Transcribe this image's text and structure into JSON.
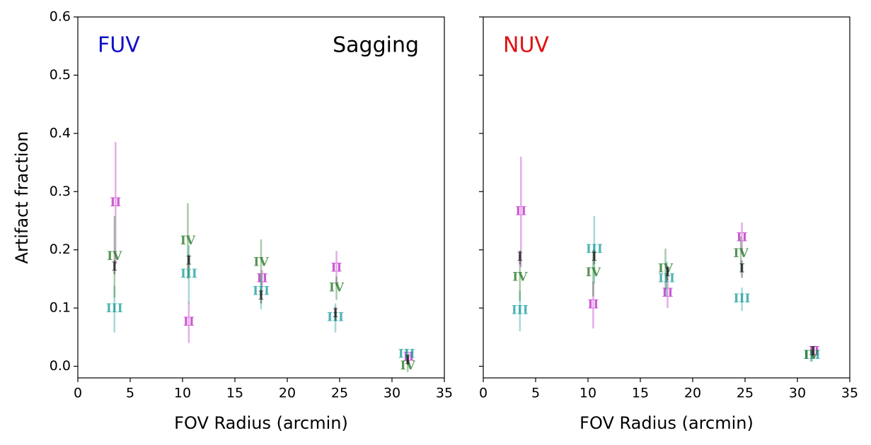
{
  "chart_data": [
    {
      "type": "scatter",
      "xlabel": "FOV Radius (arcmin)",
      "ylabel": "Artifact fraction",
      "labels": [
        {
          "text": "FUV",
          "color": "#1010c8",
          "corner": "left"
        },
        {
          "text": "Sagging",
          "color": "#000000",
          "corner": "right"
        }
      ],
      "xlim": [
        0,
        35
      ],
      "xticks": [
        0,
        5,
        10,
        15,
        20,
        25,
        30,
        35
      ],
      "ylim": [
        -0.02,
        0.6
      ],
      "yticks": [
        {
          "value": 0,
          "label": "0.0"
        },
        0.1,
        0.2,
        0.3,
        0.4,
        0.5,
        0.6
      ],
      "show_ytick_labels": true,
      "series": [
        {
          "name": "II",
          "color": "#c030c8",
          "x": [
            3.6,
            10.6,
            17.6,
            24.7,
            31.6
          ],
          "values": [
            0.28,
            0.075,
            0.15,
            0.168,
            0.015
          ],
          "errors": [
            0.105,
            0.035,
            0.015,
            0.03,
            0.01
          ]
        },
        {
          "name": "III",
          "color": "#20a0a0",
          "x": [
            3.5,
            10.6,
            17.5,
            24.6,
            31.4
          ],
          "values": [
            0.098,
            0.158,
            0.128,
            0.083,
            0.02
          ],
          "errors": [
            0.04,
            0.05,
            0.03,
            0.025,
            0.01
          ]
        },
        {
          "name": "IV",
          "color": "#2a7a2a",
          "x": [
            3.5,
            10.5,
            17.5,
            24.7,
            31.5
          ],
          "values": [
            0.188,
            0.215,
            0.178,
            0.134,
            0.0
          ],
          "errors": [
            0.07,
            0.065,
            0.04,
            0.02,
            0.01
          ]
        },
        {
          "name": "I",
          "color": "#222222",
          "x": [
            3.5,
            10.6,
            17.5,
            24.6,
            31.5
          ],
          "values": [
            0.17,
            0.18,
            0.12,
            0.09,
            0.01
          ],
          "errors": [
            0.012,
            0.012,
            0.012,
            0.012,
            0.008
          ]
        }
      ]
    },
    {
      "type": "scatter",
      "xlabel": "FOV Radius (arcmin)",
      "labels": [
        {
          "text": "NUV",
          "color": "#e01010",
          "corner": "left"
        }
      ],
      "xlim": [
        0,
        35
      ],
      "xticks": [
        0,
        5,
        10,
        15,
        20,
        25,
        30,
        35
      ],
      "ylim": [
        -0.02,
        0.6
      ],
      "yticks": [
        0,
        0.1,
        0.2,
        0.3,
        0.4,
        0.5,
        0.6
      ],
      "show_ytick_labels": false,
      "series": [
        {
          "name": "II",
          "color": "#c030c8",
          "x": [
            3.6,
            10.5,
            17.6,
            24.7,
            31.6
          ],
          "values": [
            0.265,
            0.105,
            0.125,
            0.22,
            0.025
          ],
          "errors": [
            0.095,
            0.04,
            0.025,
            0.027,
            0.01
          ]
        },
        {
          "name": "III",
          "color": "#20a0a0",
          "x": [
            3.5,
            10.6,
            17.5,
            24.7,
            31.4
          ],
          "values": [
            0.095,
            0.2,
            0.15,
            0.115,
            0.018
          ],
          "errors": [
            0.035,
            0.058,
            0.03,
            0.02,
            0.01
          ]
        },
        {
          "name": "IV",
          "color": "#2a7a2a",
          "x": [
            3.5,
            10.5,
            17.4,
            24.6,
            31.3
          ],
          "values": [
            0.152,
            0.16,
            0.167,
            0.193,
            0.018
          ],
          "errors": [
            0.04,
            0.04,
            0.035,
            0.03,
            0.01
          ]
        },
        {
          "name": "I",
          "color": "#222222",
          "x": [
            3.5,
            10.6,
            17.6,
            24.7,
            31.5
          ],
          "values": [
            0.187,
            0.187,
            0.16,
            0.167,
            0.025
          ],
          "errors": [
            0.012,
            0.012,
            0.012,
            0.015,
            0.008
          ]
        }
      ]
    }
  ]
}
